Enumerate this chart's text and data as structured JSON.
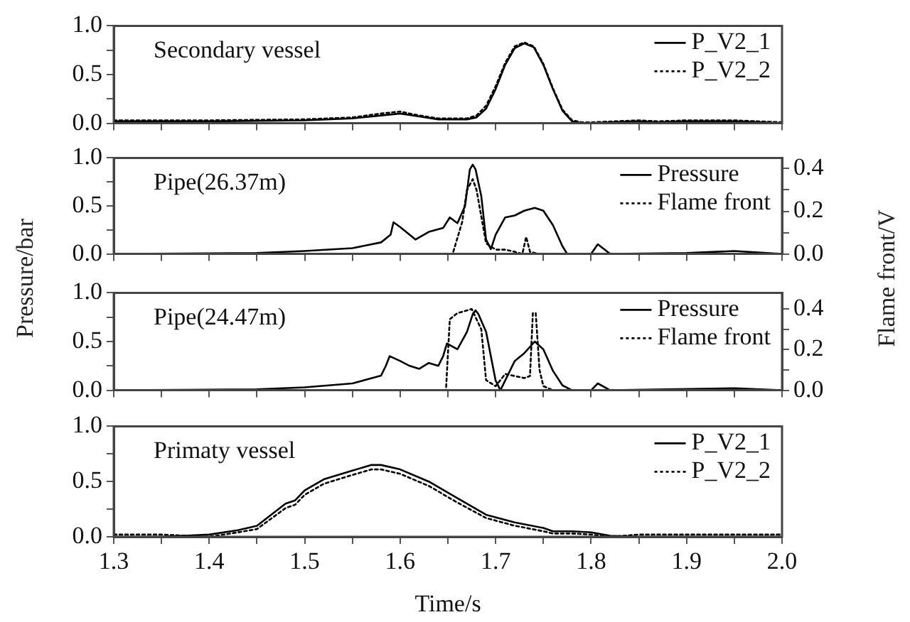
{
  "chart_data": [
    {
      "type": "line",
      "annotations": [
        "Secondary vessel"
      ],
      "legend": "top right",
      "tick_labels": "y",
      "xlim": [
        1.3,
        2.0
      ],
      "xticks": [
        {
          "value": 1.3,
          "label": null
        },
        {
          "value": 1.35,
          "label": null
        },
        {
          "value": 1.4,
          "label": null
        },
        {
          "value": 1.45,
          "label": null
        },
        {
          "value": 1.5,
          "label": null
        },
        {
          "value": 1.55,
          "label": null
        },
        {
          "value": 1.6,
          "label": null
        },
        {
          "value": 1.65,
          "label": null
        },
        {
          "value": 1.7,
          "label": null
        },
        {
          "value": 1.75,
          "label": null
        },
        {
          "value": 1.8,
          "label": null
        },
        {
          "value": 1.85,
          "label": null
        },
        {
          "value": 1.9,
          "label": null
        },
        {
          "value": 1.95,
          "label": null
        },
        {
          "value": 2.0,
          "label": null
        }
      ],
      "ylim": [
        0,
        1.0
      ],
      "yticks": [
        {
          "value": 0,
          "label": "0.0"
        },
        {
          "value": 0.25,
          "label": null
        },
        {
          "value": 0.5,
          "label": "0.5"
        },
        {
          "value": 0.75,
          "label": null
        },
        {
          "value": 1.0,
          "label": "1.0"
        }
      ],
      "series": [
        {
          "name": "P_V2_1",
          "color": "#000000",
          "line_style": "solid",
          "x": [
            1.3,
            1.4,
            1.5,
            1.55,
            1.58,
            1.6,
            1.62,
            1.64,
            1.67,
            1.68,
            1.69,
            1.7,
            1.71,
            1.72,
            1.73,
            1.74,
            1.75,
            1.76,
            1.77,
            1.78,
            1.79,
            1.8,
            1.85,
            1.87,
            1.9,
            1.95,
            2.0
          ],
          "values": [
            0.02,
            0.02,
            0.03,
            0.05,
            0.08,
            0.1,
            0.07,
            0.04,
            0.04,
            0.06,
            0.15,
            0.35,
            0.6,
            0.77,
            0.82,
            0.78,
            0.6,
            0.35,
            0.13,
            0.02,
            0.0,
            0.0,
            0.02,
            0.01,
            0.02,
            0.02,
            0.0
          ]
        },
        {
          "name": "P_V2_2",
          "color": "#000000",
          "line_style": "dotted",
          "x": [
            1.3,
            1.4,
            1.5,
            1.55,
            1.58,
            1.6,
            1.62,
            1.64,
            1.67,
            1.68,
            1.69,
            1.7,
            1.71,
            1.72,
            1.73,
            1.74,
            1.75,
            1.76,
            1.77,
            1.78,
            1.79,
            1.8,
            1.85,
            1.87,
            1.9,
            1.95,
            2.0
          ],
          "values": [
            0.03,
            0.03,
            0.04,
            0.06,
            0.1,
            0.12,
            0.08,
            0.05,
            0.05,
            0.08,
            0.18,
            0.38,
            0.62,
            0.79,
            0.83,
            0.79,
            0.61,
            0.36,
            0.14,
            0.03,
            0.01,
            0.01,
            0.03,
            0.02,
            0.03,
            0.03,
            0.01
          ]
        }
      ]
    },
    {
      "type": "line",
      "annotations": [
        "Pipe(26.37m)"
      ],
      "legend": "top right",
      "tick_labels": "y",
      "ylabel": "Pressure/bar",
      "y2label": "Flame front/V",
      "xlim": [
        1.3,
        2.0
      ],
      "xticks": [
        {
          "value": 1.3,
          "label": null
        },
        {
          "value": 1.35,
          "label": null
        },
        {
          "value": 1.4,
          "label": null
        },
        {
          "value": 1.45,
          "label": null
        },
        {
          "value": 1.5,
          "label": null
        },
        {
          "value": 1.55,
          "label": null
        },
        {
          "value": 1.6,
          "label": null
        },
        {
          "value": 1.65,
          "label": null
        },
        {
          "value": 1.7,
          "label": null
        },
        {
          "value": 1.75,
          "label": null
        },
        {
          "value": 1.8,
          "label": null
        },
        {
          "value": 1.85,
          "label": null
        },
        {
          "value": 1.9,
          "label": null
        },
        {
          "value": 1.95,
          "label": null
        },
        {
          "value": 2.0,
          "label": null
        }
      ],
      "ylim": [
        0,
        1.0
      ],
      "yticks": [
        {
          "value": 0,
          "label": "0.0"
        },
        {
          "value": 0.25,
          "label": null
        },
        {
          "value": 0.5,
          "label": "0.5"
        },
        {
          "value": 0.75,
          "label": null
        },
        {
          "value": 1.0,
          "label": "1.0"
        }
      ],
      "y2lim": [
        0,
        0.45
      ],
      "y2ticks": [
        {
          "value": 0,
          "label": "0.0"
        },
        {
          "value": 0.1,
          "label": null
        },
        {
          "value": 0.2,
          "label": "0.2"
        },
        {
          "value": 0.3,
          "label": null
        },
        {
          "value": 0.4,
          "label": "0.4"
        }
      ],
      "series": [
        {
          "name": "Pressure",
          "color": "#000000",
          "line_style": "solid",
          "x": [
            1.3,
            1.45,
            1.5,
            1.55,
            1.58,
            1.59,
            1.593,
            1.6,
            1.616,
            1.63,
            1.645,
            1.652,
            1.66,
            1.668,
            1.673,
            1.676,
            1.679,
            1.685,
            1.69,
            1.695,
            1.7,
            1.71,
            1.72,
            1.73,
            1.741,
            1.75,
            1.76,
            1.77,
            1.775,
            1.8,
            1.807,
            1.82,
            1.9,
            1.95,
            2.0
          ],
          "values": [
            0.0,
            0.01,
            0.03,
            0.06,
            0.12,
            0.2,
            0.33,
            0.28,
            0.15,
            0.23,
            0.27,
            0.38,
            0.32,
            0.5,
            0.88,
            0.93,
            0.88,
            0.6,
            0.15,
            0.05,
            0.2,
            0.38,
            0.4,
            0.45,
            0.48,
            0.45,
            0.3,
            0.08,
            0.0,
            0.0,
            0.1,
            0.0,
            0.01,
            0.03,
            0.0
          ]
        },
        {
          "name": "Flame front",
          "color": "#000000",
          "line_style": "dotted",
          "axis": "y2",
          "x": [
            1.3,
            1.655,
            1.665,
            1.67,
            1.676,
            1.68,
            1.69,
            1.7,
            1.71,
            1.72,
            1.728,
            1.732,
            1.736,
            1.745,
            2.0
          ],
          "values": [
            0.0,
            0.0,
            0.15,
            0.3,
            0.35,
            0.3,
            0.05,
            0.02,
            0.02,
            0.01,
            0.0,
            0.08,
            0.01,
            0.0,
            0.0
          ]
        }
      ]
    },
    {
      "type": "line",
      "annotations": [
        "Pipe(24.47m)"
      ],
      "legend": "top right",
      "tick_labels": "y",
      "xlim": [
        1.3,
        2.0
      ],
      "xticks": [
        {
          "value": 1.3,
          "label": null
        },
        {
          "value": 1.35,
          "label": null
        },
        {
          "value": 1.4,
          "label": null
        },
        {
          "value": 1.45,
          "label": null
        },
        {
          "value": 1.5,
          "label": null
        },
        {
          "value": 1.55,
          "label": null
        },
        {
          "value": 1.6,
          "label": null
        },
        {
          "value": 1.65,
          "label": null
        },
        {
          "value": 1.7,
          "label": null
        },
        {
          "value": 1.75,
          "label": null
        },
        {
          "value": 1.8,
          "label": null
        },
        {
          "value": 1.85,
          "label": null
        },
        {
          "value": 1.9,
          "label": null
        },
        {
          "value": 1.95,
          "label": null
        },
        {
          "value": 2.0,
          "label": null
        }
      ],
      "ylim": [
        0,
        1.0
      ],
      "yticks": [
        {
          "value": 0,
          "label": "0.0"
        },
        {
          "value": 0.25,
          "label": null
        },
        {
          "value": 0.5,
          "label": "0.5"
        },
        {
          "value": 0.75,
          "label": null
        },
        {
          "value": 1.0,
          "label": "1.0"
        }
      ],
      "y2lim": [
        0,
        0.48
      ],
      "y2ticks": [
        {
          "value": 0,
          "label": "0.0"
        },
        {
          "value": 0.1,
          "label": null
        },
        {
          "value": 0.2,
          "label": "0.2"
        },
        {
          "value": 0.3,
          "label": null
        },
        {
          "value": 0.4,
          "label": "0.4"
        }
      ],
      "series": [
        {
          "name": "Pressure",
          "color": "#000000",
          "line_style": "solid",
          "x": [
            1.3,
            1.45,
            1.5,
            1.55,
            1.58,
            1.585,
            1.589,
            1.6,
            1.61,
            1.62,
            1.63,
            1.64,
            1.645,
            1.649,
            1.66,
            1.67,
            1.676,
            1.679,
            1.682,
            1.69,
            1.7,
            1.705,
            1.71,
            1.72,
            1.73,
            1.741,
            1.75,
            1.76,
            1.77,
            1.78,
            1.8,
            1.807,
            1.82,
            1.95,
            2.0
          ],
          "values": [
            0.0,
            0.01,
            0.03,
            0.07,
            0.15,
            0.25,
            0.35,
            0.3,
            0.25,
            0.22,
            0.28,
            0.25,
            0.35,
            0.48,
            0.42,
            0.6,
            0.78,
            0.82,
            0.78,
            0.6,
            0.1,
            0.0,
            0.1,
            0.3,
            0.38,
            0.5,
            0.42,
            0.2,
            0.05,
            0.0,
            0.0,
            0.07,
            0.0,
            0.02,
            0.0
          ]
        },
        {
          "name": "Flame front",
          "color": "#000000",
          "line_style": "dotted",
          "axis": "y2",
          "x": [
            1.3,
            1.648,
            1.652,
            1.66,
            1.675,
            1.685,
            1.69,
            1.7,
            1.71,
            1.72,
            1.73,
            1.736,
            1.739,
            1.742,
            1.746,
            1.75,
            1.76,
            2.0
          ],
          "values": [
            0.0,
            0.0,
            0.35,
            0.38,
            0.4,
            0.3,
            0.05,
            0.02,
            0.08,
            0.07,
            0.06,
            0.07,
            0.38,
            0.38,
            0.1,
            0.02,
            0.0,
            0.0
          ]
        }
      ]
    },
    {
      "type": "line",
      "annotations": [
        "Primaty vessel"
      ],
      "legend": "top right",
      "xlabel": "Time/s",
      "xlim": [
        1.3,
        2.0
      ],
      "xticks": [
        {
          "value": 1.3,
          "label": "1.3"
        },
        {
          "value": 1.35,
          "label": null
        },
        {
          "value": 1.4,
          "label": "1.4"
        },
        {
          "value": 1.45,
          "label": null
        },
        {
          "value": 1.5,
          "label": "1.5"
        },
        {
          "value": 1.55,
          "label": null
        },
        {
          "value": 1.6,
          "label": "1.6"
        },
        {
          "value": 1.65,
          "label": null
        },
        {
          "value": 1.7,
          "label": "1.7"
        },
        {
          "value": 1.75,
          "label": null
        },
        {
          "value": 1.8,
          "label": "1.8"
        },
        {
          "value": 1.85,
          "label": null
        },
        {
          "value": 1.9,
          "label": "1.9"
        },
        {
          "value": 1.95,
          "label": null
        },
        {
          "value": 2.0,
          "label": "2.0"
        }
      ],
      "ylim": [
        0,
        1.0
      ],
      "yticks": [
        {
          "value": 0,
          "label": "0.0"
        },
        {
          "value": 0.25,
          "label": null
        },
        {
          "value": 0.5,
          "label": "0.5"
        },
        {
          "value": 0.75,
          "label": null
        },
        {
          "value": 1.0,
          "label": "1.0"
        }
      ],
      "series": [
        {
          "name": "P_V2_1",
          "color": "#000000",
          "line_style": "solid",
          "x": [
            1.3,
            1.35,
            1.4,
            1.43,
            1.45,
            1.48,
            1.49,
            1.5,
            1.52,
            1.55,
            1.57,
            1.58,
            1.6,
            1.63,
            1.66,
            1.69,
            1.72,
            1.75,
            1.76,
            1.78,
            1.8,
            1.82,
            1.85,
            2.0
          ],
          "values": [
            0.0,
            0.0,
            0.02,
            0.06,
            0.1,
            0.3,
            0.33,
            0.42,
            0.52,
            0.6,
            0.65,
            0.65,
            0.61,
            0.5,
            0.35,
            0.2,
            0.13,
            0.08,
            0.05,
            0.05,
            0.04,
            0.01,
            0.0,
            0.0
          ]
        },
        {
          "name": "P_V2_2",
          "color": "#000000",
          "line_style": "dotted",
          "x": [
            1.3,
            1.35,
            1.4,
            1.43,
            1.45,
            1.48,
            1.49,
            1.5,
            1.52,
            1.55,
            1.57,
            1.58,
            1.6,
            1.63,
            1.66,
            1.69,
            1.72,
            1.75,
            1.76,
            1.78,
            1.8,
            1.82,
            1.85,
            2.0
          ],
          "values": [
            0.02,
            0.02,
            0.0,
            0.04,
            0.07,
            0.26,
            0.29,
            0.38,
            0.48,
            0.56,
            0.61,
            0.61,
            0.57,
            0.46,
            0.31,
            0.17,
            0.1,
            0.05,
            0.03,
            0.03,
            0.02,
            0.0,
            0.02,
            0.02
          ]
        }
      ]
    }
  ]
}
